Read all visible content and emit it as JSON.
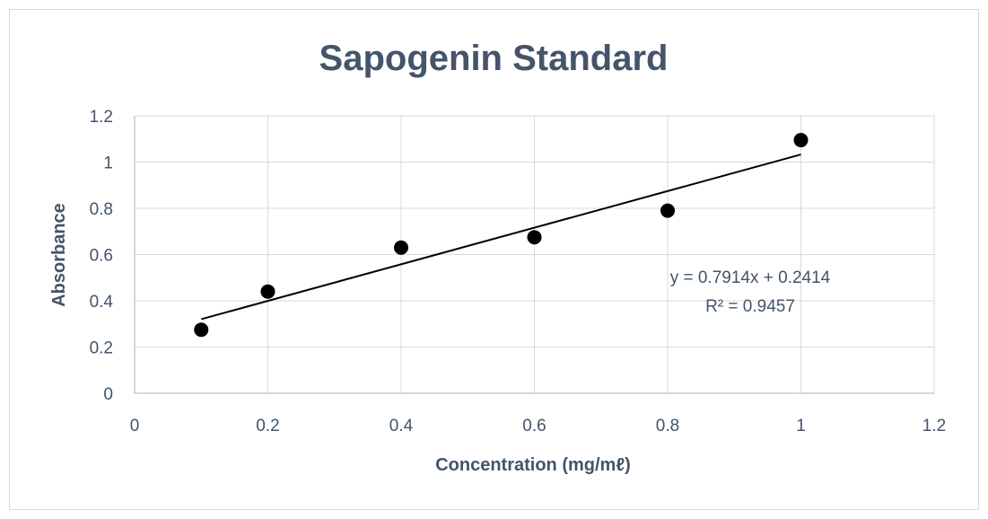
{
  "chart_data": {
    "type": "scatter",
    "title": "Sapogenin Standard",
    "xlabel": "Concentration (mg/mℓ)",
    "ylabel": "Absorbance",
    "xlim": [
      0,
      1.2
    ],
    "ylim": [
      0,
      1.2
    ],
    "x_ticks": [
      "0",
      "0.2",
      "0.4",
      "0.6",
      "0.8",
      "1",
      "1.2"
    ],
    "y_ticks": [
      "0",
      "0.2",
      "0.4",
      "0.6",
      "0.8",
      "1",
      "1.2"
    ],
    "grid": true,
    "series": [
      {
        "x": [
          0.1,
          0.2,
          0.4,
          0.6,
          0.8,
          1.0
        ],
        "y": [
          0.275,
          0.44,
          0.63,
          0.675,
          0.79,
          1.095
        ],
        "color": "#000000"
      }
    ],
    "trendline": {
      "type": "linear",
      "slope": 0.7914,
      "intercept": 0.2414,
      "x_range": [
        0.1,
        1.0
      ],
      "equation": "y = 0.7914x + 0.2414",
      "r_squared": "R² = 0.9457"
    }
  }
}
